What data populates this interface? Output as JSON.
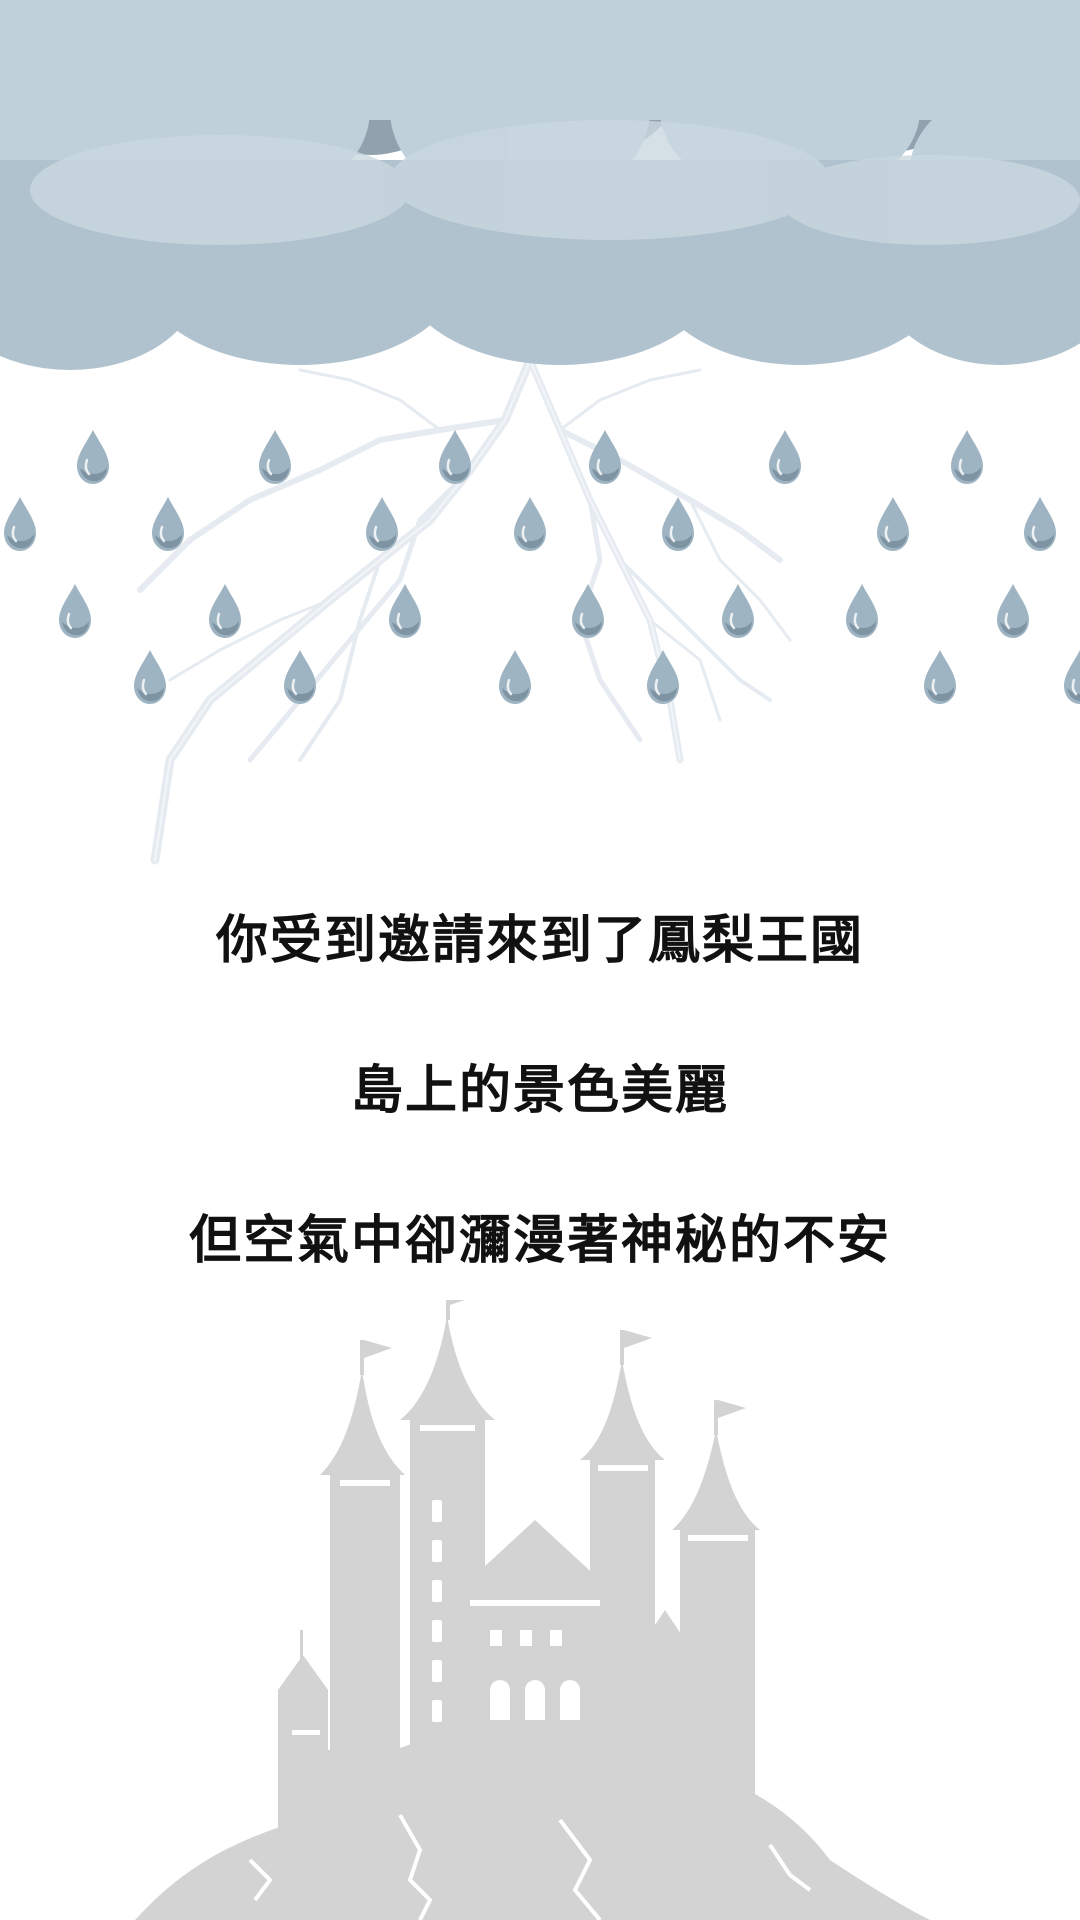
{
  "scene": {
    "icons": {
      "clouds": "storm-cloud-icon",
      "lightning": "lightning-icon",
      "rain": "raindrop-icon",
      "castle": "castle-icon"
    },
    "colors": {
      "background": "#ffffff",
      "cloud_light": "#c0d0da",
      "cloud_mid": "#b0c2ce",
      "cloud_dark": "#91a1ae",
      "raindrop": "#9fb4c2",
      "raindrop_shade": "#7e94a3",
      "lightning": "#dfe6ee",
      "castle": "#d3d3d3",
      "castle_detail": "#ffffff",
      "text": "#111111"
    }
  },
  "story": {
    "lines": [
      "你受到邀請來到了鳳梨王國",
      "島上的景色美麗",
      "但空氣中卻瀰漫著神秘的不安"
    ]
  }
}
